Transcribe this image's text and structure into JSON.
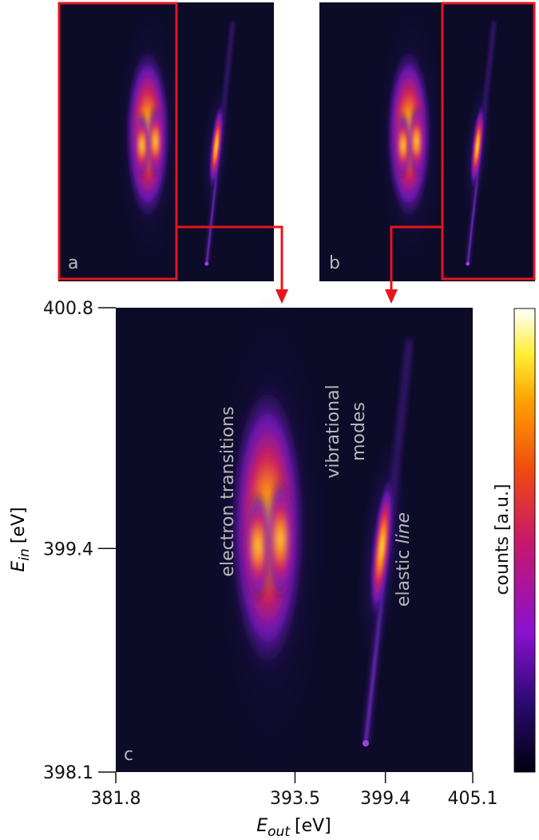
{
  "chart_data": {
    "type": "heatmap",
    "x_label": {
      "symbol": "E",
      "subscript": "out",
      "unit": "[eV]"
    },
    "y_label": {
      "symbol": "E",
      "subscript": "in",
      "unit": "[eV]"
    },
    "xlim": [
      381.8,
      405.1
    ],
    "xticks": [
      381.8,
      393.5,
      399.4,
      405.1
    ],
    "ylim": [
      398.1,
      400.8
    ],
    "yticks": [
      398.1,
      399.4,
      400.8
    ],
    "colorbar_label": "counts [a.u.]",
    "panels": [
      "a",
      "b",
      "c"
    ],
    "annotations": {
      "electron": "electron transitions",
      "vibrational": [
        "vibrational",
        "modes"
      ],
      "elastic": {
        "text": "elastic",
        "italic_text": "line"
      }
    }
  }
}
